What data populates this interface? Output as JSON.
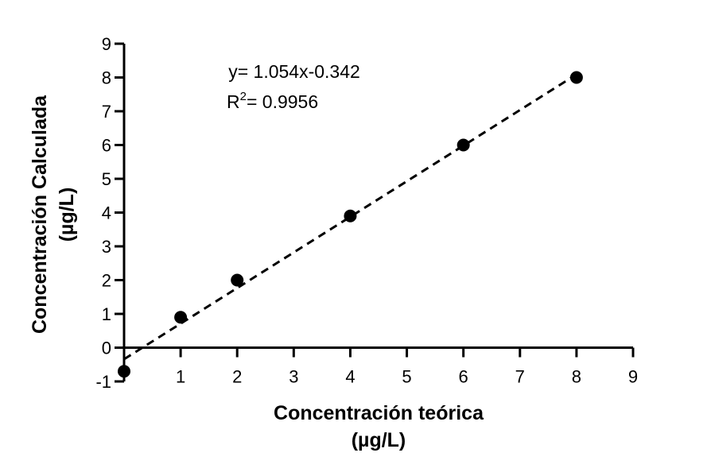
{
  "chart_data": {
    "type": "scatter",
    "xlabel": [
      "Concentración teórica",
      "(µg/L)"
    ],
    "ylabel": [
      "Concentración Calculada",
      "(µg/L)"
    ],
    "xlim": [
      0,
      9
    ],
    "ylim": [
      -1,
      9
    ],
    "x_ticks": [
      "1",
      "2",
      "3",
      "4",
      "5",
      "6",
      "7",
      "8",
      "9"
    ],
    "y_ticks": [
      "-1",
      "0",
      "1",
      "2",
      "3",
      "4",
      "5",
      "6",
      "7",
      "8",
      "9"
    ],
    "grid": false,
    "legend": "none",
    "points": {
      "x": [
        0,
        1,
        2,
        4,
        6,
        8
      ],
      "y": [
        -0.7,
        0.9,
        2.0,
        3.9,
        6.0,
        8.0
      ]
    },
    "fit_line": {
      "style": "dashed",
      "slope": 1.054,
      "intercept": -0.342,
      "x_range": [
        0,
        8
      ]
    },
    "annotations": {
      "equation": "y= 1.054x-0.342",
      "r2_prefix": "R",
      "r2_exponent": "2",
      "r2_value": "= 0.9956"
    },
    "colors": {
      "marker": "#000000",
      "axis": "#000000",
      "line": "#000000"
    }
  }
}
